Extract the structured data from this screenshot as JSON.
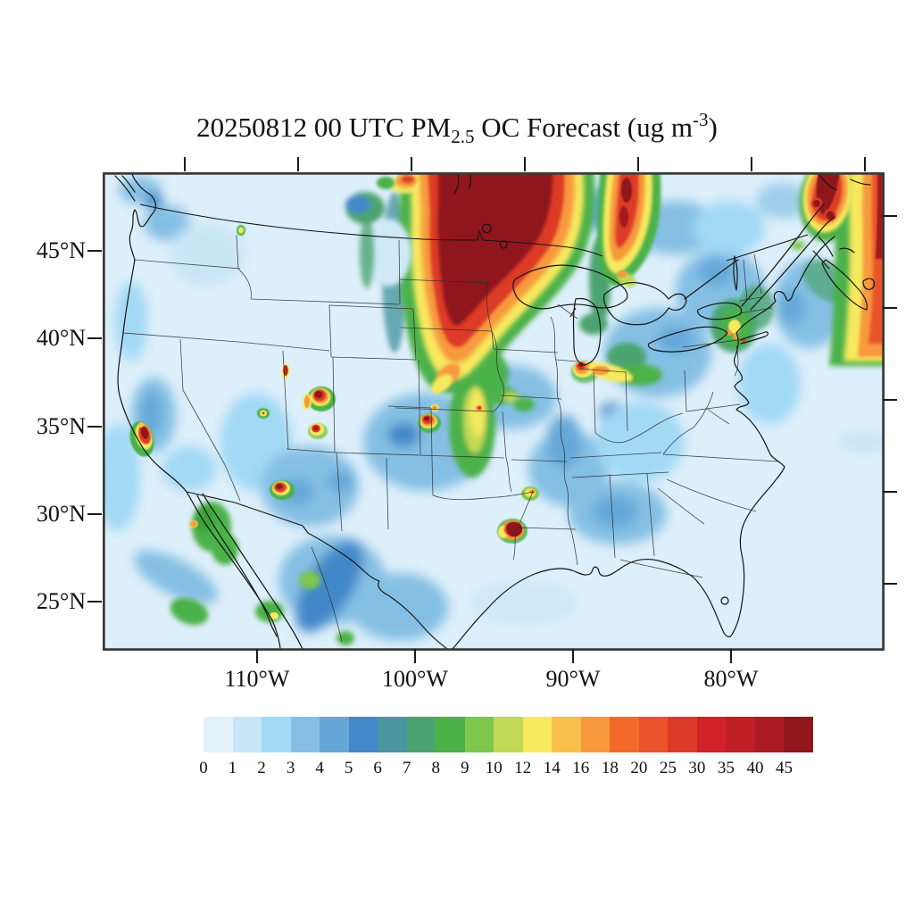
{
  "title": {
    "prefix": "20250812 00 UTC PM",
    "subscript": "2.5",
    "middle": " OC Forecast (ug m",
    "superscript": "-3",
    "suffix": ")"
  },
  "axes": {
    "lat_labels": [
      "45°N",
      "40°N",
      "35°N",
      "30°N",
      "25°N"
    ],
    "lon_labels": [
      "110°W",
      "100°W",
      "90°W",
      "80°W"
    ]
  },
  "colorbar": {
    "labels": [
      "0",
      "1",
      "2",
      "3",
      "4",
      "5",
      "6",
      "7",
      "8",
      "9",
      "10",
      "12",
      "14",
      "16",
      "18",
      "20",
      "25",
      "30",
      "35",
      "40",
      "45"
    ],
    "colors": [
      "#e3f1fa",
      "#c9e6f7",
      "#a2d9f5",
      "#85c0e4",
      "#65a8d8",
      "#4388c8",
      "#4a96a0",
      "#4ba470",
      "#4cb148",
      "#7fc64d",
      "#c2d957",
      "#f7e95e",
      "#f8c04a",
      "#f7993c",
      "#f26a29",
      "#e9532c",
      "#dc3a28",
      "#d1222a",
      "#c11f26",
      "#aa1b22",
      "#91171d"
    ]
  },
  "chart_data": {
    "type": "heatmap",
    "title": "20250812 00 UTC PM2.5 OC Forecast (ug m-3)",
    "units": "ug m-3",
    "region": "Continental United States with southern Canada and northern Mexico, Lambert conformal style map",
    "lat_ticks": [
      "45N",
      "40N",
      "35N",
      "30N",
      "25N"
    ],
    "lon_ticks": [
      "110W",
      "100W",
      "90W",
      "80W"
    ],
    "levels": [
      0,
      1,
      2,
      3,
      4,
      5,
      6,
      7,
      8,
      9,
      10,
      12,
      14,
      16,
      18,
      20,
      25,
      30,
      35,
      40,
      45
    ],
    "palette": [
      "#e3f1fa",
      "#c9e6f7",
      "#a2d9f5",
      "#85c0e4",
      "#65a8d8",
      "#4388c8",
      "#4a96a0",
      "#4ba470",
      "#4cb148",
      "#7fc64d",
      "#c2d957",
      "#f7e95e",
      "#f8c04a",
      "#f7993c",
      "#f26a29",
      "#e9532c",
      "#dc3a28",
      "#d1222a",
      "#c11f26",
      "#aa1b22",
      "#91171d"
    ],
    "features": [
      {
        "region": "Large smoke plume over central Canada (Manitoba/NW Ontario) extending south through Minnesota, Wisconsin into Iowa/Illinois",
        "value": ">45"
      },
      {
        "region": "Secondary plume streak from Ontario south over Lake Huron / Georgian Bay",
        "value": "25-45"
      },
      {
        "region": "Streaks over southern Quebec / New Brunswick (top right corner)",
        "value": ">45"
      },
      {
        "region": "Band along the right map edge over the Atlantic off Nova Scotia",
        "value": "14-30"
      },
      {
        "region": "Central California coast hotspot",
        "value": ">45"
      },
      {
        "region": "Southwest Utah hotspot",
        "value": ">45"
      },
      {
        "region": "Small Nevada/Utah border spot",
        "value": "30-40"
      },
      {
        "region": "Southwest New Mexico hotspot",
        "value": "30-45"
      },
      {
        "region": "Eastern Colorado / western Kansas spot",
        "value": "30-45"
      },
      {
        "region": "North-south band central Kansas-Oklahoma",
        "value": "8-14 with small 25+ spot"
      },
      {
        "region": "Texas-Louisiana border (Sabine) hotspot",
        "value": ">45"
      },
      {
        "region": "Chicago / southern Lake Michigan spot",
        "value": "30-40"
      },
      {
        "region": "New York City metro small spots",
        "value": "12-25"
      },
      {
        "region": "Northern Idaho small spot",
        "value": "10-14"
      },
      {
        "region": "Sonora and Sinaloa (Mexico) patches",
        "value": "8-14"
      },
      {
        "region": "Background eastern and southern US",
        "value": "0-4"
      },
      {
        "region": "Background western US and oceans",
        "value": "0-3"
      }
    ]
  }
}
